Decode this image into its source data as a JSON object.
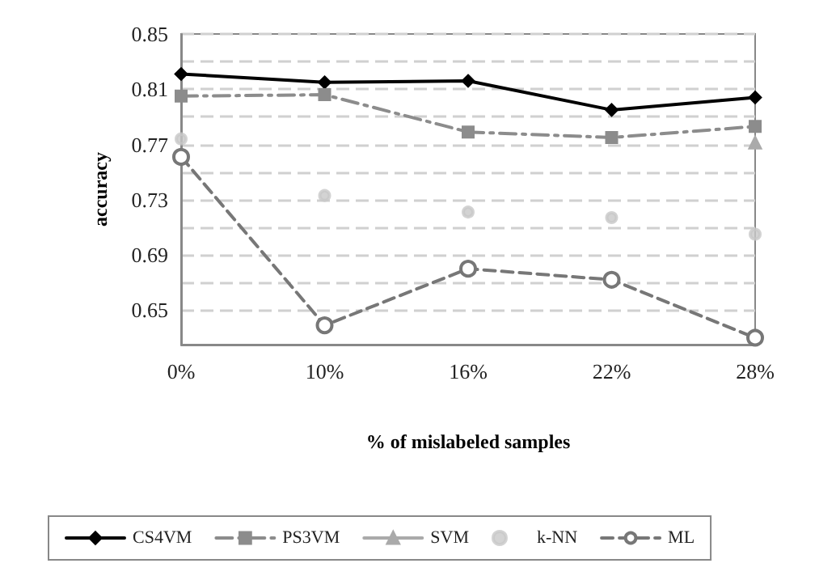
{
  "chart_data": {
    "type": "line",
    "ylabel": "accuracy",
    "xlabel": "% of mislabeled samples",
    "categories": [
      "0%",
      "10%",
      "16%",
      "22%",
      "28%"
    ],
    "ylim": [
      0.625,
      0.85
    ],
    "yticks": [
      0.65,
      {
        "value": 0.67,
        "label": null
      },
      0.69,
      {
        "value": 0.71,
        "label": null
      },
      0.73,
      {
        "value": 0.75,
        "label": null
      },
      0.77,
      {
        "value": 0.79,
        "label": null
      },
      0.81,
      {
        "value": 0.83,
        "label": null
      },
      0.85
    ],
    "grid": "y",
    "legend": "bottom",
    "series": [
      {
        "name": "CS4VM",
        "color": "#000000",
        "marker": "diamond",
        "line_style": "solid",
        "values": [
          0.821,
          0.815,
          0.816,
          0.795,
          0.804
        ]
      },
      {
        "name": "PS3VM",
        "color": "#8c8c8c",
        "marker": "square",
        "line_style": "dashed",
        "values": [
          0.805,
          0.806,
          0.779,
          0.775,
          0.783
        ]
      },
      {
        "name": "SVM",
        "color": "#aaaaaa",
        "marker": "triangle",
        "line_style": "solid",
        "values": [
          null,
          null,
          null,
          null,
          0.771
        ]
      },
      {
        "name": "k-NN",
        "type": "scatter",
        "color": "#c8c8c8",
        "marker": "circle",
        "values": [
          0.774,
          0.733,
          0.721,
          0.717,
          0.705
        ]
      },
      {
        "name": "ML",
        "color": "#777777",
        "marker": "circle",
        "line_style": "dashed",
        "values": [
          0.761,
          0.639,
          0.68,
          0.672,
          0.63
        ]
      }
    ]
  }
}
